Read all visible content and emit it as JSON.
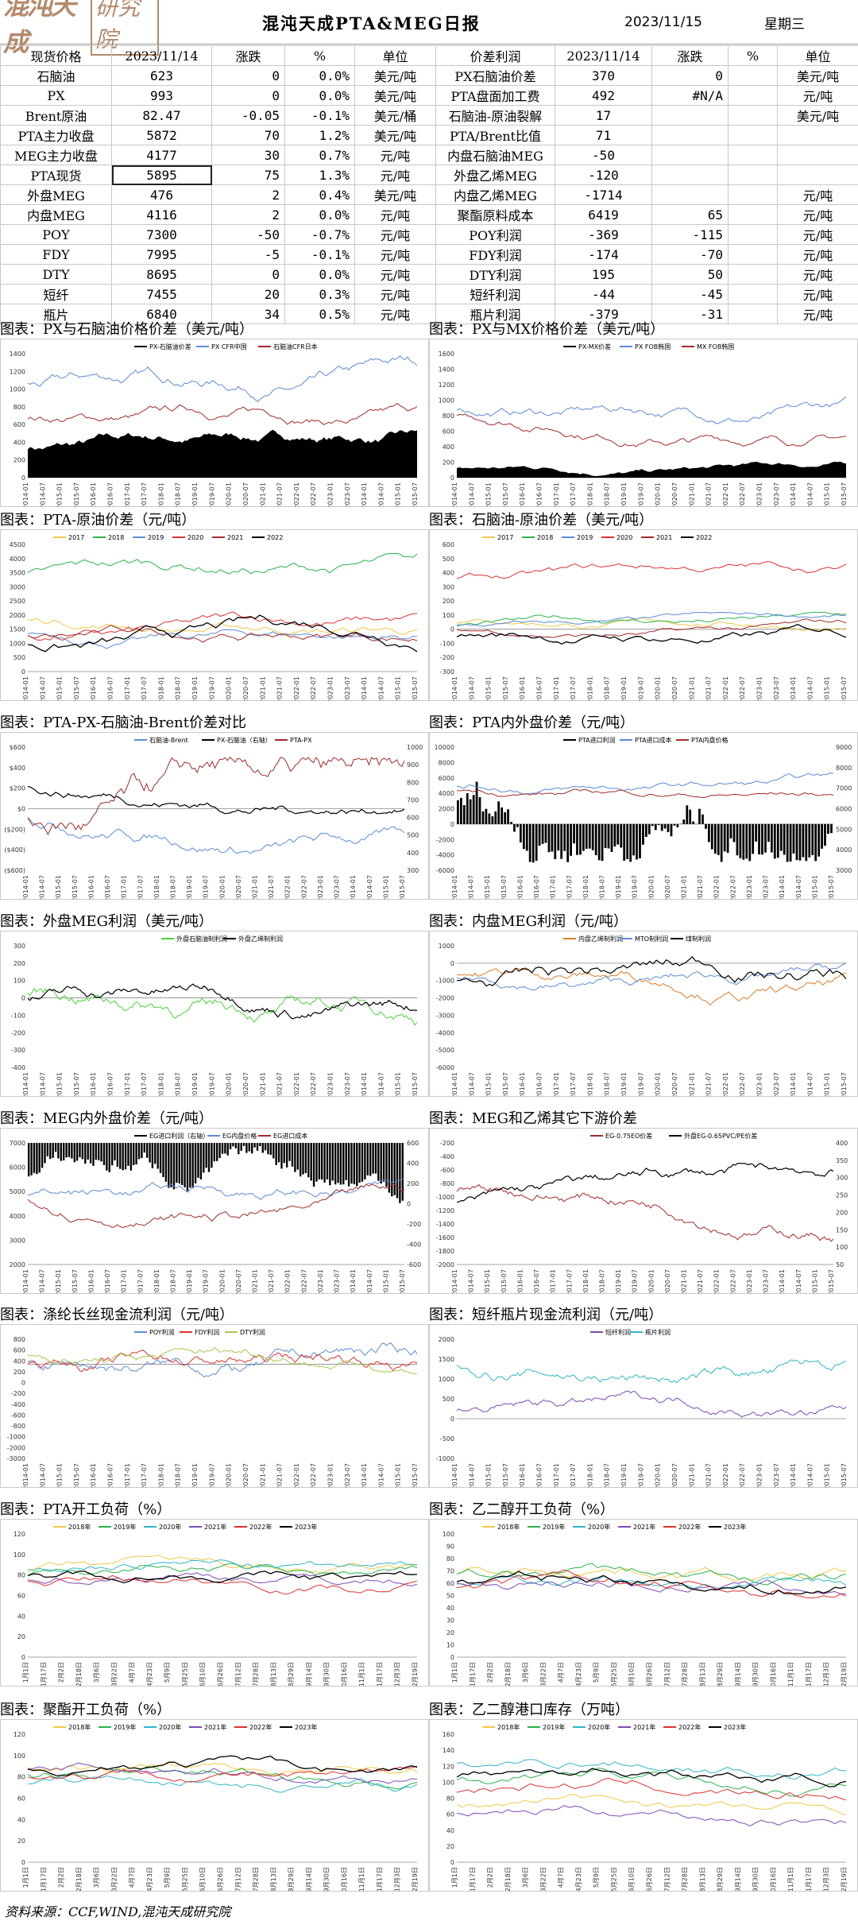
{
  "header": {
    "logo_main": "混沌天成",
    "logo_sub": "研究院",
    "title": "混沌天成PTA&MEG日报",
    "date": "2023/11/15",
    "weekday": "星期三"
  },
  "left_table": {
    "headers": [
      "现货价格",
      "2023/11/14",
      "涨跌",
      "%",
      "单位"
    ],
    "rows": [
      [
        "石脑油",
        "623",
        "0",
        "0.0%",
        "美元/吨"
      ],
      [
        "PX",
        "993",
        "0",
        "0.0%",
        "美元/吨"
      ],
      [
        "Brent原油",
        "82.47",
        "-0.05",
        "-0.1%",
        "美元/桶"
      ],
      [
        "PTA主力收盘",
        "5872",
        "70",
        "1.2%",
        "美元/吨"
      ],
      [
        "MEG主力收盘",
        "4177",
        "30",
        "0.7%",
        "元/吨"
      ],
      [
        "PTA现货",
        "5895",
        "75",
        "1.3%",
        "元/吨"
      ],
      [
        "外盘MEG",
        "476",
        "2",
        "0.4%",
        "美元/吨"
      ],
      [
        "内盘MEG",
        "4116",
        "2",
        "0.0%",
        "元/吨"
      ],
      [
        "POY",
        "7300",
        "-50",
        "-0.7%",
        "元/吨"
      ],
      [
        "FDY",
        "7995",
        "-5",
        "-0.1%",
        "元/吨"
      ],
      [
        "DTY",
        "8695",
        "0",
        "0.0%",
        "元/吨"
      ],
      [
        "短纤",
        "7455",
        "20",
        "0.3%",
        "元/吨"
      ],
      [
        "瓶片",
        "6840",
        "34",
        "0.5%",
        "元/吨"
      ]
    ]
  },
  "right_table": {
    "headers": [
      "价差利润",
      "2023/11/14",
      "涨跌",
      "%",
      "单位"
    ],
    "rows": [
      [
        "PX石脑油价差",
        "370",
        "0",
        "",
        "美元/吨"
      ],
      [
        "PTA盘面加工费",
        "492",
        "#N/A",
        "",
        "元/吨"
      ],
      [
        "石脑油-原油裂解",
        "17",
        "",
        "",
        "美元/吨"
      ],
      [
        "PTA/Brent比值",
        "71",
        "",
        "",
        ""
      ],
      [
        "内盘石脑油MEG",
        "-50",
        "",
        "",
        ""
      ],
      [
        "外盘乙烯MEG",
        "-120",
        "",
        "",
        ""
      ],
      [
        "内盘乙烯MEG",
        "-1714",
        "",
        "",
        "元/吨"
      ],
      [
        "聚酯原料成本",
        "6419",
        "65",
        "",
        "元/吨"
      ],
      [
        "POY利润",
        "-369",
        "-115",
        "",
        "元/吨"
      ],
      [
        "FDY利润",
        "-174",
        "-70",
        "",
        "元/吨"
      ],
      [
        "DTY利润",
        "195",
        "50",
        "",
        "元/吨"
      ],
      [
        "短纤利润",
        "-44",
        "-45",
        "",
        "元/吨"
      ],
      [
        "瓶片利润",
        "-379",
        "-31",
        "",
        "元/吨"
      ]
    ]
  },
  "panels": [
    {
      "title": "图表：PX与石脑油价格价差（美元/吨）",
      "legend": [
        "PX-石脑油价差",
        "PX CFR中国",
        "石脑油CFR日本"
      ]
    },
    {
      "title": "图表：PX与MX价格价差（美元/吨）",
      "legend": [
        "PX-MX价差",
        "PX FOB韩国",
        "MX FOB韩国"
      ]
    },
    {
      "title": "图表：PTA-原油价差（元/吨）",
      "legend": [
        "2017",
        "2018",
        "2019",
        "2020",
        "2021",
        "2022"
      ]
    },
    {
      "title": "图表：石脑油-原油价差（美元/吨）",
      "legend": [
        "2017",
        "2018",
        "2019",
        "2020",
        "2021",
        "2022"
      ]
    },
    {
      "title": "图表：PTA-PX-石脑油-Brent价差对比",
      "legend": [
        "石脑油-Brent",
        "PX-石脑油（右轴）",
        "PTA-PX"
      ]
    },
    {
      "title": "图表：PTA内外盘价差（元/吨）",
      "legend": [
        "PTA进口利润",
        "PTA进口成本",
        "PTA内盘价格"
      ]
    },
    {
      "title": "图表：外盘MEG利润（美元/吨）",
      "legend": [
        "外盘石脑油制利润",
        "外盘乙烯制利润"
      ]
    },
    {
      "title": "图表：内盘MEG利润（元/吨）",
      "legend": [
        "内盘乙烯制利润",
        "MTO制利润",
        "煤制利润"
      ]
    },
    {
      "title": "图表：MEG内外盘价差（元/吨）",
      "legend": [
        "EG进口利润（右轴）",
        "EG内盘价格",
        "EG进口成本"
      ]
    },
    {
      "title": "图表：MEG和乙烯其它下游价差",
      "legend": [
        "EG-0.75EO价差",
        "外盘EG-0.65PVC/PE价差"
      ]
    },
    {
      "title": "图表：涤纶长丝现金流利润（元/吨）",
      "legend": [
        "POY利润",
        "FDY利润",
        "DTY利润"
      ]
    },
    {
      "title": "图表：短纤瓶片现金流利润（元/吨）",
      "legend": [
        "短纤利润",
        "瓶片利润"
      ]
    },
    {
      "title": "图表：PTA开工负荷（%）",
      "legend": [
        "2018年",
        "2019年",
        "2020年",
        "2021年",
        "2022年",
        "2023年"
      ]
    },
    {
      "title": "图表：乙二醇开工负荷（%）",
      "legend": [
        "2018年",
        "2019年",
        "2020年",
        "2021年",
        "2022年",
        "2023年"
      ]
    },
    {
      "title": "图表：聚酯开工负荷（%）",
      "legend": [
        "2018年",
        "2019年",
        "2020年",
        "2021年",
        "2022年",
        "2023年"
      ]
    },
    {
      "title": "图表：乙二醇港口库存（万吨）",
      "legend": [
        "2018年",
        "2019年",
        "2020年",
        "2021年",
        "2022年",
        "2023年"
      ]
    }
  ],
  "chart_data": [
    {
      "type": "line",
      "title": "PX与石脑油价格价差（美元/吨）",
      "yticks": [
        "1400",
        "1200",
        "1000",
        "800",
        "600",
        "400",
        "200",
        "0"
      ],
      "ylim": [
        0,
        1400
      ]
    },
    {
      "type": "line",
      "title": "PX与MX价格价差（美元/吨）",
      "yticks": [
        "1600",
        "1400",
        "1200",
        "1000",
        "800",
        "600",
        "400",
        "200",
        "0"
      ],
      "ylim": [
        0,
        1600
      ]
    },
    {
      "type": "line",
      "title": "PTA-原油价差（元/吨）",
      "yticks": [
        "4500",
        "4000",
        "3500",
        "3000",
        "2500",
        "2000",
        "1500",
        "1000",
        "500",
        "0"
      ],
      "ylim": [
        0,
        4500
      ]
    },
    {
      "type": "line",
      "title": "石脑油-原油价差（美元/吨）",
      "yticks": [
        "600",
        "500",
        "400",
        "300",
        "200",
        "100",
        "0",
        "-100",
        "-200",
        "-300"
      ],
      "ylim": [
        -300,
        600
      ]
    },
    {
      "type": "line",
      "title": "PTA-PX-石脑油-Brent价差对比",
      "yticks": [
        "$600",
        "$400",
        "$200",
        "$0",
        "($200)",
        "($400)",
        "($600)"
      ],
      "ylim": [
        -600,
        600
      ],
      "y2ticks": [
        "1000",
        "900",
        "800",
        "700",
        "600",
        "500",
        "400",
        "300"
      ]
    },
    {
      "type": "bar",
      "title": "PTA内外盘价差（元/吨）",
      "yticks": [
        "10000",
        "8000",
        "6000",
        "4000",
        "2000",
        "0",
        "-2000",
        "-4000",
        "-6000"
      ],
      "ylim": [
        -6000,
        10000
      ],
      "y2ticks": [
        "9000",
        "8000",
        "7000",
        "6000",
        "5000",
        "4000",
        "3000"
      ]
    },
    {
      "type": "line",
      "title": "外盘MEG利润（美元/吨）",
      "yticks": [
        "300",
        "200",
        "100",
        "0",
        "-100",
        "-200",
        "-300",
        "-400"
      ],
      "ylim": [
        -400,
        300
      ]
    },
    {
      "type": "line",
      "title": "内盘MEG利润（元/吨）",
      "yticks": [
        "1000",
        "0",
        "-1000",
        "-2000",
        "-3000",
        "-4000",
        "-5000",
        "-6000"
      ],
      "ylim": [
        -6000,
        1000
      ]
    },
    {
      "type": "bar",
      "title": "MEG内外盘价差（元/吨）",
      "yticks": [
        "7000",
        "6000",
        "5000",
        "4000",
        "3000",
        "2000"
      ],
      "ylim": [
        2000,
        7000
      ],
      "y2ticks": [
        "600",
        "400",
        "200",
        "0",
        "-200",
        "-400",
        "-600"
      ]
    },
    {
      "type": "line",
      "title": "MEG和乙烯其它下游价差",
      "yticks": [
        "-200",
        "-400",
        "-600",
        "-800",
        "-1000",
        "-1200",
        "-1400",
        "-1600",
        "-1800",
        "-2000"
      ],
      "ylim": [
        -2000,
        -200
      ],
      "y2ticks": [
        "400",
        "350",
        "300",
        "250",
        "200",
        "150",
        "100",
        "50"
      ]
    },
    {
      "type": "line",
      "title": "涤纶长丝现金流利润（元/吨）",
      "yticks": [
        "800",
        "600",
        "400",
        "200",
        "0",
        "-200",
        "-400",
        "-600",
        "-800",
        "-1000",
        "-2000",
        "-3000"
      ],
      "ylim": [
        -3000,
        800
      ]
    },
    {
      "type": "line",
      "title": "短纤瓶片现金流利润（元/吨）",
      "yticks": [
        "2000",
        "1500",
        "1000",
        "500",
        "0",
        "-500",
        "-1000"
      ],
      "ylim": [
        -1000,
        2000
      ]
    },
    {
      "type": "line",
      "title": "PTA开工负荷（%）",
      "yticks": [
        "120",
        "100",
        "80",
        "60",
        "40",
        "20",
        "0"
      ],
      "ylim": [
        0,
        120
      ]
    },
    {
      "type": "line",
      "title": "乙二醇开工负荷（%）",
      "yticks": [
        "100",
        "90",
        "80",
        "70",
        "60",
        "50",
        "40",
        "30",
        "20",
        "10",
        "0"
      ],
      "ylim": [
        0,
        100
      ]
    },
    {
      "type": "line",
      "title": "聚酯开工负荷（%）",
      "yticks": [
        "120",
        "100",
        "80",
        "60",
        "40",
        "20",
        "0"
      ],
      "ylim": [
        0,
        120
      ]
    },
    {
      "type": "line",
      "title": "乙二醇港口库存（万吨）",
      "yticks": [
        "160",
        "140",
        "120",
        "100",
        "80",
        "60",
        "40",
        "20",
        "0"
      ],
      "ylim": [
        0,
        160
      ]
    }
  ],
  "colors": {
    "black": "#000000",
    "blue": "#5b8bd6",
    "darkred": "#a32a2a",
    "red": "#e03030",
    "green": "#29b34a",
    "yellow": "#f2c744",
    "purple": "#7c4bb3",
    "cyan": "#2fb6c9",
    "lime": "#4ad63a",
    "orange": "#e07b24",
    "olive": "#a6c94d",
    "darkblue": "#233f8f"
  },
  "footer": "资料来源：CCF,WIND,混沌天成研究院"
}
